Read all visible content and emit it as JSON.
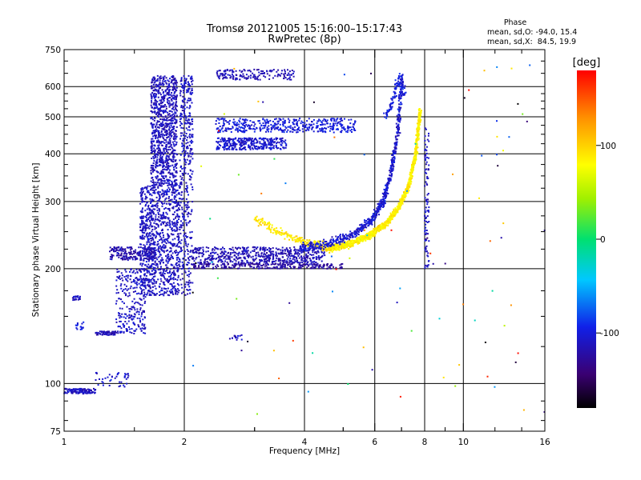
{
  "chart_data": {
    "type": "scatter",
    "title": "Tromsø 20121005 15:16:00–15:17:43",
    "subtitle": "RwPretec (8p)",
    "xlabel": "Frequency [MHz]",
    "ylabel": "Stationary phase Virtual Height [km]",
    "x_scale": "log",
    "y_scale": "log",
    "xlim": [
      1,
      16
    ],
    "ylim": [
      75,
      750
    ],
    "x_ticks": [
      1,
      2,
      4,
      6,
      8,
      10,
      16
    ],
    "x_tick_labels": [
      "1",
      "2",
      "4",
      "6",
      "8",
      "10",
      "16"
    ],
    "y_ticks": [
      75,
      100,
      200,
      300,
      400,
      500,
      600,
      750
    ],
    "y_tick_labels": [
      "75",
      "100",
      "200",
      "300",
      "400",
      "500",
      "600",
      "750"
    ],
    "grid": true,
    "stats": {
      "heading": "Phase",
      "line_o": "mean, sd,O: -94.0, 15.4",
      "line_x": "mean, sd,X:  84.5, 19.9"
    },
    "colorbar": {
      "label": "[deg]",
      "ticks": [
        100,
        0,
        -100
      ],
      "tick_labels": [
        "100",
        "0",
        "-100"
      ],
      "range": [
        -180,
        180
      ]
    },
    "traces": [
      {
        "kind": "band",
        "x_min": 1.0,
        "x_max": 1.2,
        "h_min": 94,
        "h_max": 97,
        "phase": -110,
        "n": 110
      },
      {
        "kind": "band",
        "x_min": 1.2,
        "x_max": 1.45,
        "h_min": 98,
        "h_max": 107,
        "phase": -105,
        "n": 40
      },
      {
        "kind": "band",
        "x_min": 1.05,
        "x_max": 1.1,
        "h_min": 165,
        "h_max": 170,
        "phase": -110,
        "n": 20
      },
      {
        "kind": "band",
        "x_min": 1.07,
        "x_max": 1.12,
        "h_min": 138,
        "h_max": 145,
        "phase": -100,
        "n": 15
      },
      {
        "kind": "band",
        "x_min": 1.2,
        "x_max": 1.35,
        "h_min": 134,
        "h_max": 137,
        "phase": -115,
        "n": 60
      },
      {
        "kind": "band",
        "x_min": 1.35,
        "x_max": 1.6,
        "h_min": 135,
        "h_max": 200,
        "phase": -110,
        "n": 250
      },
      {
        "kind": "band",
        "x_min": 1.3,
        "x_max": 1.7,
        "h_min": 210,
        "h_max": 228,
        "phase": -120,
        "n": 200
      },
      {
        "kind": "band",
        "x_min": 1.55,
        "x_max": 1.95,
        "h_min": 170,
        "h_max": 330,
        "phase": -110,
        "n": 1000
      },
      {
        "kind": "band",
        "x_min": 1.65,
        "x_max": 1.92,
        "h_min": 330,
        "h_max": 640,
        "phase": -112,
        "n": 900
      },
      {
        "kind": "band",
        "x_min": 1.95,
        "x_max": 2.1,
        "h_min": 380,
        "h_max": 640,
        "phase": -108,
        "n": 220
      },
      {
        "kind": "band",
        "x_min": 1.95,
        "x_max": 2.1,
        "h_min": 170,
        "h_max": 380,
        "phase": -110,
        "n": 200
      },
      {
        "kind": "band",
        "x_min": 2.4,
        "x_max": 3.6,
        "h_min": 410,
        "h_max": 440,
        "phase": -105,
        "n": 320
      },
      {
        "kind": "band",
        "x_min": 2.4,
        "x_max": 5.4,
        "h_min": 455,
        "h_max": 495,
        "phase": -100,
        "n": 420
      },
      {
        "kind": "band",
        "x_min": 2.4,
        "x_max": 3.8,
        "h_min": 625,
        "h_max": 665,
        "phase": -115,
        "n": 160
      },
      {
        "kind": "band",
        "x_min": 2.1,
        "x_max": 4.5,
        "h_min": 205,
        "h_max": 228,
        "phase": -115,
        "n": 600
      },
      {
        "kind": "band",
        "x_min": 2.1,
        "x_max": 5.0,
        "h_min": 200,
        "h_max": 206,
        "phase": -125,
        "n": 220
      },
      {
        "kind": "band",
        "x_min": 2.6,
        "x_max": 2.8,
        "h_min": 130,
        "h_max": 135,
        "phase": -110,
        "n": 15
      },
      {
        "kind": "curve",
        "x": [
          3.0,
          3.4,
          3.8,
          4.2,
          4.5,
          4.8
        ],
        "h": [
          270,
          252,
          240,
          232,
          228,
          226
        ],
        "spread": 0.035,
        "phase": 90,
        "n": 230
      },
      {
        "kind": "curve",
        "x": [
          4.6,
          5.2,
          5.8,
          6.4,
          6.9,
          7.3,
          7.6,
          7.8
        ],
        "h": [
          226,
          232,
          244,
          262,
          290,
          330,
          400,
          520
        ],
        "spread": 0.03,
        "phase": 85,
        "n": 1100
      },
      {
        "kind": "curve",
        "x": [
          3.9,
          4.6,
          5.3,
          5.9,
          6.3,
          6.6,
          6.85,
          7.0
        ],
        "h": [
          226,
          232,
          246,
          268,
          300,
          360,
          450,
          610
        ],
        "spread": 0.04,
        "phase": -105,
        "n": 650
      },
      {
        "kind": "curve",
        "x": [
          6.4,
          6.6,
          6.8,
          7.0,
          7.1
        ],
        "h": [
          500,
          540,
          600,
          640,
          570
        ],
        "spread": 0.04,
        "phase": -100,
        "n": 120
      },
      {
        "kind": "band",
        "x_min": 8.0,
        "x_max": 8.2,
        "h_min": 200,
        "h_max": 470,
        "phase": -110,
        "n": 100
      },
      {
        "kind": "scatter",
        "x_min": 2.0,
        "x_max": 16.0,
        "h_min": 80,
        "h_max": 700,
        "n": 90
      }
    ]
  }
}
